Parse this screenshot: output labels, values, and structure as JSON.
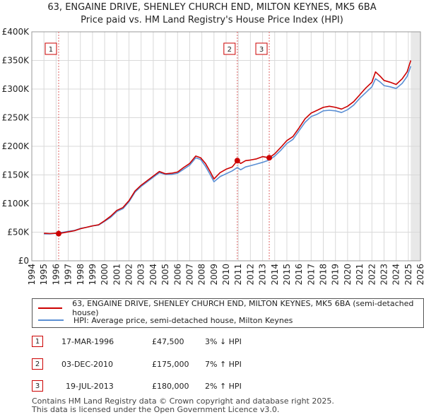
{
  "chart_data": {
    "type": "line",
    "title": "63, ENGAINE DRIVE, SHENLEY CHURCH END, MILTON KEYNES, MK5 6BA",
    "subtitle": "Price paid vs. HM Land Registry's House Price Index (HPI)",
    "xlim": [
      1994,
      2026
    ],
    "ylim": [
      0,
      400000
    ],
    "x_ticks": [
      "1994",
      "1995",
      "1996",
      "1997",
      "1998",
      "1999",
      "2000",
      "2001",
      "2002",
      "2003",
      "2004",
      "2005",
      "2006",
      "2007",
      "2008",
      "2009",
      "2010",
      "2011",
      "2012",
      "2013",
      "2014",
      "2015",
      "2016",
      "2017",
      "2018",
      "2019",
      "2020",
      "2021",
      "2022",
      "2023",
      "2024",
      "2025",
      "2026"
    ],
    "y_ticks": [
      {
        "value": 0,
        "label": "£0"
      },
      {
        "value": 50000,
        "label": "£50K"
      },
      {
        "value": 100000,
        "label": "£100K"
      },
      {
        "value": 150000,
        "label": "£150K"
      },
      {
        "value": 200000,
        "label": "£200K"
      },
      {
        "value": 250000,
        "label": "£250K"
      },
      {
        "value": 300000,
        "label": "£300K"
      },
      {
        "value": 350000,
        "label": "£350K"
      },
      {
        "value": 400000,
        "label": "£400K"
      }
    ],
    "series": [
      {
        "name": "63, ENGAINE DRIVE, SHENLEY CHURCH END, MILTON KEYNES, MK5 6BA (semi-detached house)",
        "color": "#cc0000",
        "points": [
          [
            1995.0,
            48000
          ],
          [
            1995.5,
            47500
          ],
          [
            1996.0,
            48000
          ],
          [
            1996.21,
            47500
          ],
          [
            1996.6,
            49000
          ],
          [
            1997.0,
            50500
          ],
          [
            1997.5,
            52500
          ],
          [
            1998.0,
            56000
          ],
          [
            1998.5,
            58500
          ],
          [
            1999.0,
            61000
          ],
          [
            1999.5,
            63000
          ],
          [
            2000.0,
            70000
          ],
          [
            2000.5,
            78000
          ],
          [
            2001.0,
            88000
          ],
          [
            2001.5,
            93000
          ],
          [
            2002.0,
            105000
          ],
          [
            2002.5,
            122000
          ],
          [
            2003.0,
            132000
          ],
          [
            2003.5,
            140000
          ],
          [
            2004.0,
            148000
          ],
          [
            2004.5,
            156000
          ],
          [
            2005.0,
            152000
          ],
          [
            2005.5,
            153000
          ],
          [
            2006.0,
            155000
          ],
          [
            2006.5,
            163000
          ],
          [
            2007.0,
            170000
          ],
          [
            2007.5,
            183000
          ],
          [
            2007.9,
            180000
          ],
          [
            2008.3,
            170000
          ],
          [
            2008.7,
            155000
          ],
          [
            2009.0,
            143000
          ],
          [
            2009.5,
            154000
          ],
          [
            2010.0,
            160000
          ],
          [
            2010.5,
            164000
          ],
          [
            2010.92,
            175000
          ],
          [
            2011.2,
            170000
          ],
          [
            2011.6,
            175000
          ],
          [
            2012.0,
            176000
          ],
          [
            2012.5,
            178000
          ],
          [
            2013.0,
            182000
          ],
          [
            2013.55,
            180000
          ],
          [
            2014.0,
            187000
          ],
          [
            2014.5,
            198000
          ],
          [
            2015.0,
            210000
          ],
          [
            2015.5,
            217000
          ],
          [
            2016.0,
            232000
          ],
          [
            2016.5,
            248000
          ],
          [
            2017.0,
            258000
          ],
          [
            2017.5,
            263000
          ],
          [
            2018.0,
            268000
          ],
          [
            2018.5,
            270000
          ],
          [
            2019.0,
            268000
          ],
          [
            2019.5,
            265000
          ],
          [
            2020.0,
            270000
          ],
          [
            2020.5,
            278000
          ],
          [
            2021.0,
            290000
          ],
          [
            2021.5,
            302000
          ],
          [
            2022.0,
            312000
          ],
          [
            2022.3,
            330000
          ],
          [
            2022.7,
            322000
          ],
          [
            2023.0,
            315000
          ],
          [
            2023.5,
            312000
          ],
          [
            2024.0,
            308000
          ],
          [
            2024.5,
            318000
          ],
          [
            2024.9,
            330000
          ],
          [
            2025.2,
            350000
          ]
        ]
      },
      {
        "name": "HPI: Average price, semi-detached house, Milton Keynes",
        "color": "#5b8fd4",
        "points": [
          [
            1995.0,
            47000
          ],
          [
            1995.5,
            47000
          ],
          [
            1996.0,
            48000
          ],
          [
            1996.21,
            49000
          ],
          [
            1996.6,
            50000
          ],
          [
            1997.0,
            51500
          ],
          [
            1997.5,
            53000
          ],
          [
            1998.0,
            56500
          ],
          [
            1998.5,
            58500
          ],
          [
            1999.0,
            61000
          ],
          [
            1999.5,
            62500
          ],
          [
            2000.0,
            69000
          ],
          [
            2000.5,
            76000
          ],
          [
            2001.0,
            86000
          ],
          [
            2001.5,
            91000
          ],
          [
            2002.0,
            103000
          ],
          [
            2002.5,
            120000
          ],
          [
            2003.0,
            130000
          ],
          [
            2003.5,
            138000
          ],
          [
            2004.0,
            146000
          ],
          [
            2004.5,
            154000
          ],
          [
            2005.0,
            151000
          ],
          [
            2005.5,
            151000
          ],
          [
            2006.0,
            153000
          ],
          [
            2006.5,
            160000
          ],
          [
            2007.0,
            167000
          ],
          [
            2007.5,
            180000
          ],
          [
            2007.9,
            177000
          ],
          [
            2008.3,
            165000
          ],
          [
            2008.7,
            150000
          ],
          [
            2009.0,
            138000
          ],
          [
            2009.5,
            147000
          ],
          [
            2010.0,
            152000
          ],
          [
            2010.5,
            157000
          ],
          [
            2010.92,
            163000
          ],
          [
            2011.2,
            159000
          ],
          [
            2011.6,
            164000
          ],
          [
            2012.0,
            166000
          ],
          [
            2012.5,
            169000
          ],
          [
            2013.0,
            172000
          ],
          [
            2013.55,
            176000
          ],
          [
            2014.0,
            183000
          ],
          [
            2014.5,
            193000
          ],
          [
            2015.0,
            205000
          ],
          [
            2015.5,
            212000
          ],
          [
            2016.0,
            227000
          ],
          [
            2016.5,
            242000
          ],
          [
            2017.0,
            252000
          ],
          [
            2017.5,
            256000
          ],
          [
            2018.0,
            262000
          ],
          [
            2018.5,
            263000
          ],
          [
            2019.0,
            262000
          ],
          [
            2019.5,
            259000
          ],
          [
            2020.0,
            264000
          ],
          [
            2020.5,
            272000
          ],
          [
            2021.0,
            284000
          ],
          [
            2021.5,
            294000
          ],
          [
            2022.0,
            304000
          ],
          [
            2022.3,
            318000
          ],
          [
            2022.7,
            312000
          ],
          [
            2023.0,
            306000
          ],
          [
            2023.5,
            304000
          ],
          [
            2024.0,
            301000
          ],
          [
            2024.5,
            310000
          ],
          [
            2024.9,
            322000
          ],
          [
            2025.2,
            340000
          ]
        ]
      }
    ],
    "sales": [
      {
        "label": "1",
        "x": 1996.21,
        "price": 47500
      },
      {
        "label": "2",
        "x": 2010.92,
        "price": 175000
      },
      {
        "label": "3",
        "x": 2013.55,
        "price": 180000
      }
    ]
  },
  "legend": [
    {
      "label": "63, ENGAINE DRIVE, SHENLEY CHURCH END, MILTON KEYNES, MK5 6BA (semi-detached house)",
      "color": "#cc0000"
    },
    {
      "label": "HPI: Average price, semi-detached house, Milton Keynes",
      "color": "#5b8fd4"
    }
  ],
  "transactions": [
    {
      "num": "1",
      "date": "17-MAR-1996",
      "price": "£47,500",
      "hpi": "3% ↓ HPI"
    },
    {
      "num": "2",
      "date": "03-DEC-2010",
      "price": "£175,000",
      "hpi": "7% ↑ HPI"
    },
    {
      "num": "3",
      "date": "19-JUL-2013",
      "price": "£180,000",
      "hpi": "2% ↑ HPI"
    }
  ],
  "footer": {
    "line1": "Contains HM Land Registry data © Crown copyright and database right 2025.",
    "line2": "This data is licensed under the Open Government Licence v3.0."
  }
}
